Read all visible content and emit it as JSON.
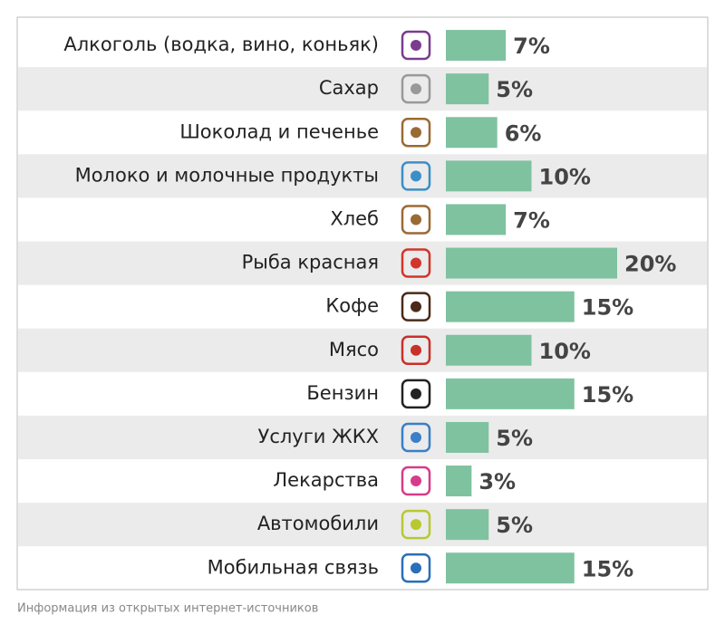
{
  "chart_data": {
    "type": "bar",
    "orientation": "horizontal",
    "categories": [
      "Алкоголь (водка, вино, коньяк)",
      "Сахар",
      "Шоколад и печенье",
      "Молоко и молочные продукты",
      "Хлеб",
      "Рыба красная",
      "Кофе",
      "Мясо",
      "Бензин",
      "Услуги ЖКХ",
      "Лекарства",
      "Автомобили",
      "Мобильная связь"
    ],
    "values": [
      7,
      5,
      6,
      10,
      7,
      20,
      15,
      10,
      15,
      5,
      3,
      5,
      15
    ],
    "value_labels": [
      "7%",
      "5%",
      "6%",
      "10%",
      "7%",
      "20%",
      "15%",
      "10%",
      "15%",
      "5%",
      "3%",
      "5%",
      "15%"
    ],
    "color": "#7fc29f",
    "note": "Информация из открытых интернет-источников"
  }
}
